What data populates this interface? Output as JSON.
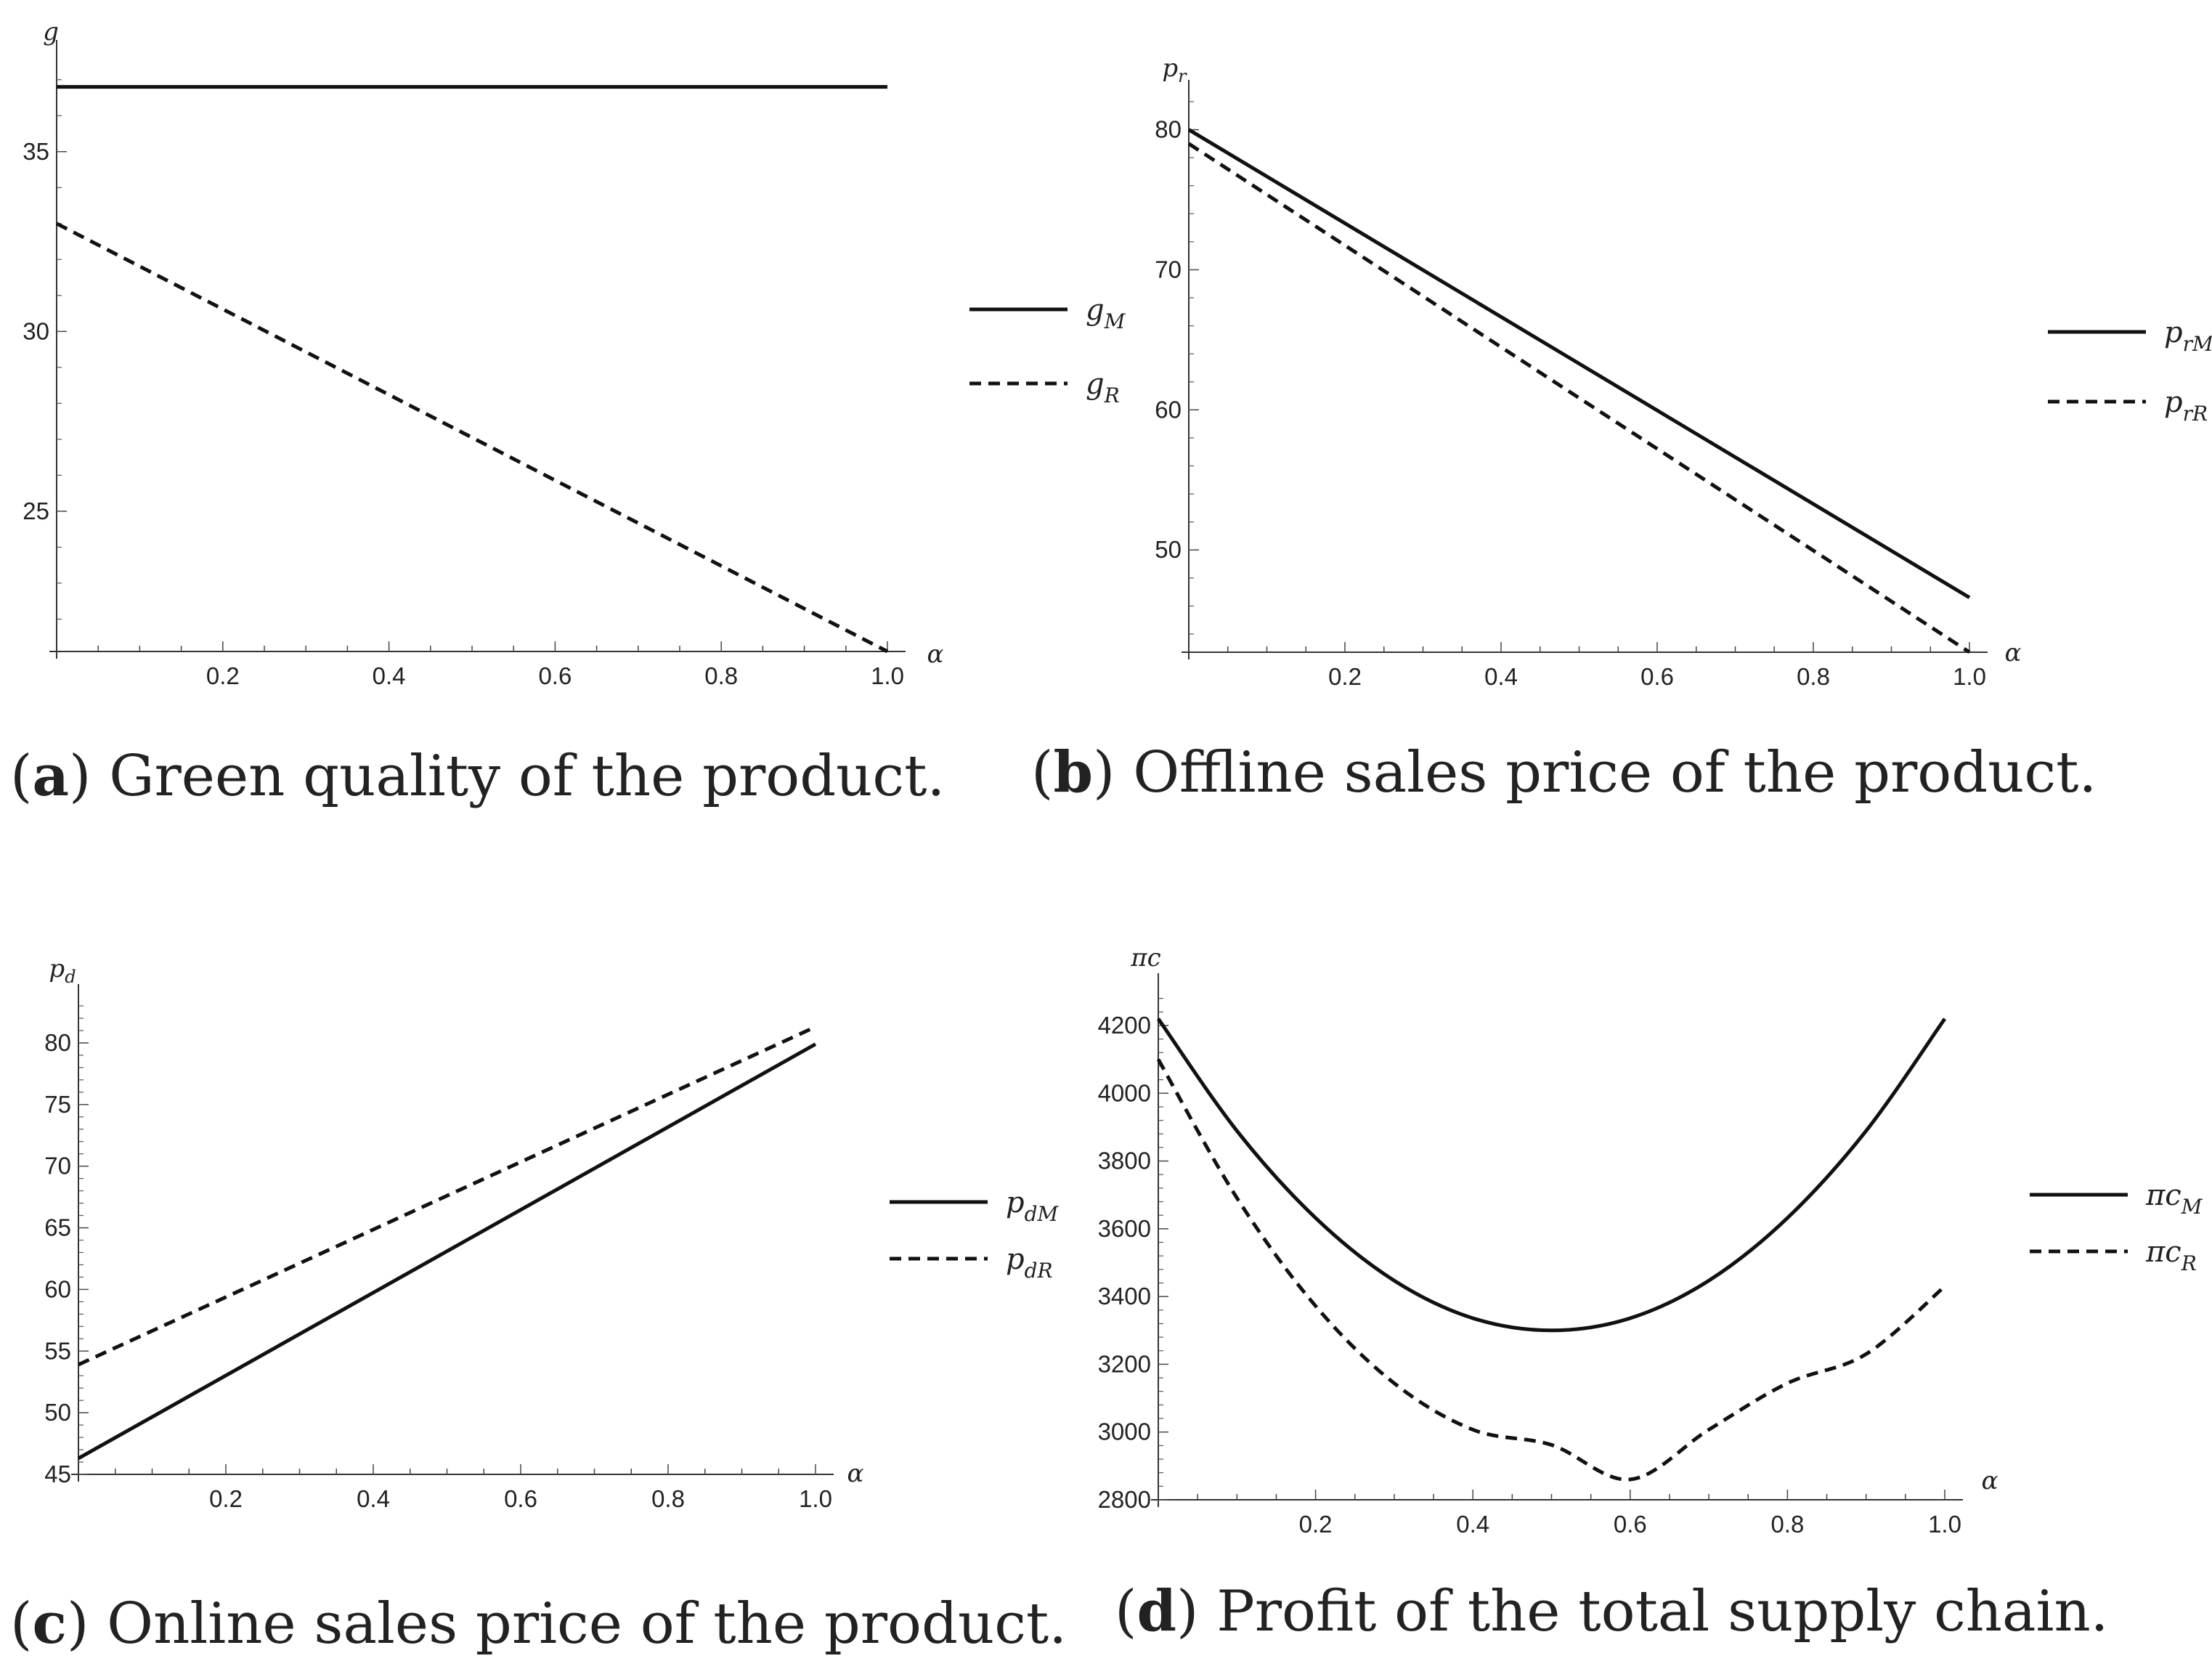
{
  "chart_data": [
    {
      "id": "a",
      "type": "line",
      "caption": {
        "letter": "a",
        "text": "Green quality of the product."
      },
      "ylabel": "g",
      "xlabel": "α",
      "xlim": [
        0,
        1
      ],
      "ylim": [
        21.1,
        37.5
      ],
      "xticks": [
        "0.2",
        "0.4",
        "0.6",
        "0.8",
        "1.0"
      ],
      "yticks": [
        "25",
        "30",
        "35"
      ],
      "legend_position": "right",
      "series": [
        {
          "name": "g",
          "sub": "M",
          "dash": "solid",
          "x": [
            0,
            1
          ],
          "y": [
            36.8,
            36.8
          ]
        },
        {
          "name": "g",
          "sub": "R",
          "dash": "dashed",
          "x": [
            0,
            1
          ],
          "y": [
            33.0,
            21.1
          ]
        }
      ]
    },
    {
      "id": "b",
      "type": "line",
      "caption": {
        "letter": "b",
        "text": "Offline sales price of the product."
      },
      "ylabel": "p",
      "ylabel_sub": "r",
      "xlabel": "α",
      "xlim": [
        0,
        1
      ],
      "ylim": [
        42.7,
        82
      ],
      "xticks": [
        "0.2",
        "0.4",
        "0.6",
        "0.8",
        "1.0"
      ],
      "yticks": [
        "50",
        "60",
        "70",
        "80"
      ],
      "legend_position": "right",
      "series": [
        {
          "name": "p",
          "sub": "r M",
          "dash": "solid",
          "x": [
            0,
            1
          ],
          "y": [
            80.0,
            46.6
          ]
        },
        {
          "name": "p",
          "sub": "r R",
          "dash": "dashed",
          "x": [
            0,
            1
          ],
          "y": [
            79.0,
            42.7
          ]
        }
      ]
    },
    {
      "id": "c",
      "type": "line",
      "caption": {
        "letter": "c",
        "text": "Online sales price of the product."
      },
      "ylabel": "p",
      "ylabel_sub": "d",
      "xlabel": "α",
      "xlim": [
        0,
        1
      ],
      "ylim": [
        45,
        83
      ],
      "xticks": [
        "0.2",
        "0.4",
        "0.6",
        "0.8",
        "1.0"
      ],
      "yticks": [
        "45",
        "50",
        "55",
        "60",
        "65",
        "70",
        "75",
        "80"
      ],
      "legend_position": "right",
      "series": [
        {
          "name": "p",
          "sub": "d M",
          "dash": "solid",
          "x": [
            0,
            1
          ],
          "y": [
            46.3,
            79.9
          ]
        },
        {
          "name": "p",
          "sub": "d R",
          "dash": "dashed",
          "x": [
            0,
            1
          ],
          "y": [
            53.9,
            81.3
          ]
        }
      ]
    },
    {
      "id": "d",
      "type": "line",
      "caption": {
        "letter": "d",
        "text": "Profit of the total supply chain."
      },
      "ylabel": "πc",
      "xlabel": "α",
      "xlim": [
        0,
        1
      ],
      "ylim": [
        2800,
        4290
      ],
      "xticks": [
        "0.2",
        "0.4",
        "0.6",
        "0.8",
        "1.0"
      ],
      "yticks": [
        "2800",
        "3000",
        "3200",
        "3400",
        "3600",
        "3800",
        "4000",
        "4200"
      ],
      "legend_position": "right",
      "series": [
        {
          "name": "πc",
          "sub": "M",
          "dash": "solid",
          "x": [
            0,
            0.1,
            0.2,
            0.3,
            0.4,
            0.5,
            0.6,
            0.7,
            0.8,
            0.9,
            1.0
          ],
          "y": [
            4220,
            3889,
            3632,
            3447,
            3336,
            3300,
            3336,
            3447,
            3632,
            3889,
            4220
          ]
        },
        {
          "name": "πc",
          "sub": "R",
          "dash": "dashed",
          "x": [
            0,
            0.1,
            0.2,
            0.3,
            0.4,
            0.5,
            0.6,
            0.7,
            0.8,
            0.9,
            1.0
          ],
          "y": [
            4100,
            3691,
            3372,
            3144,
            3007,
            2962,
            2860,
            3007,
            3144,
            3230,
            3430
          ]
        }
      ]
    }
  ]
}
